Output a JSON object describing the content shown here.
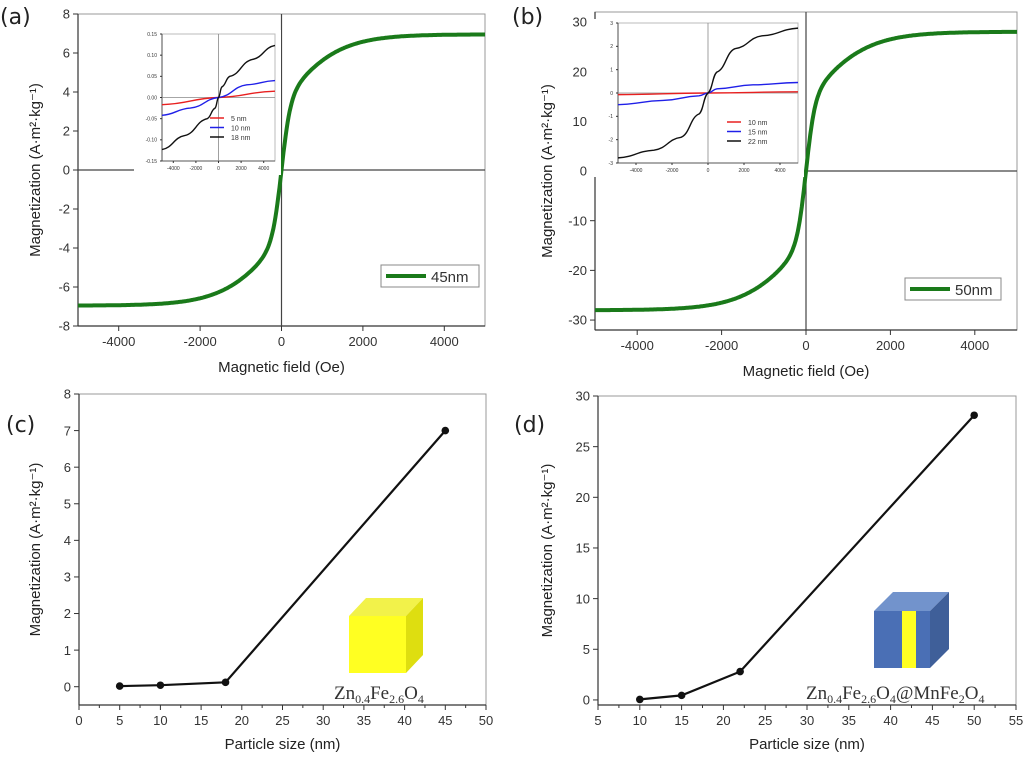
{
  "figure": {
    "panels": [
      "(a)",
      "(b)",
      "(c)",
      "(d)"
    ]
  },
  "colors": {
    "main_curve": "#1a7a1a",
    "inset_red": "#e82020",
    "inset_blue": "#2020e8",
    "inset_black": "#111111",
    "cube_yellow": "#ffff22",
    "shell_blue": "#4a6fb5"
  },
  "chart_data": [
    {
      "panel": "(a)",
      "type": "line",
      "xlabel": "Magnetic field (Oe)",
      "ylabel": "Magnetization (A·m²·kg⁻¹)",
      "xlim": [
        -5000,
        5000
      ],
      "ylim": [
        -8,
        8
      ],
      "xticks": [
        -4000,
        -2000,
        0,
        2000,
        4000
      ],
      "yticks": [
        -8,
        -6,
        -4,
        -2,
        0,
        2,
        4,
        6,
        8
      ],
      "grid": false,
      "legend": {
        "position": "bottom-right",
        "entries": [
          "45nm"
        ]
      },
      "series": [
        {
          "name": "45nm",
          "color": "#1a7a1a",
          "model": "saturating",
          "Ms": 7.25,
          "H0": 220,
          "x": [
            -5000,
            -4000,
            -3000,
            -2000,
            -1000,
            -500,
            -200,
            0,
            200,
            500,
            1000,
            2000,
            3000,
            4000,
            5000
          ],
          "y": [
            -6.95,
            -6.85,
            -6.7,
            -6.5,
            -6.0,
            -5.2,
            -3.5,
            0,
            3.5,
            5.2,
            6.0,
            6.5,
            6.7,
            6.85,
            6.95
          ]
        }
      ],
      "inset": {
        "xlim": [
          -5000,
          5000
        ],
        "ylim": [
          -0.15,
          0.15
        ],
        "xticks": [
          -4000,
          -2000,
          0,
          2000,
          4000
        ],
        "yticks": [
          -0.15,
          -0.1,
          -0.05,
          0.0,
          0.05,
          0.1,
          0.15
        ],
        "ytick_labels": [
          "-0.15",
          "-0.10",
          "-0.05",
          "0.00",
          "0.05",
          "0.10",
          "0.15"
        ],
        "legend": {
          "position": "bottom-right",
          "entries": [
            "5 nm",
            "10 nm",
            "18 nm"
          ]
        },
        "series": [
          {
            "name": "5 nm",
            "color": "#e82020",
            "x": [
              -5000,
              0,
              5000
            ],
            "y": [
              -0.017,
              0,
              0.015
            ]
          },
          {
            "name": "10 nm",
            "color": "#2020e8",
            "x": [
              -5000,
              -2500,
              0,
              2500,
              5000
            ],
            "y": [
              -0.042,
              -0.025,
              0,
              0.03,
              0.04
            ]
          },
          {
            "name": "18 nm",
            "color": "#111111",
            "x": [
              -5000,
              -3000,
              -1000,
              -300,
              0,
              300,
              1000,
              3000,
              5000
            ],
            "y": [
              -0.123,
              -0.09,
              -0.05,
              -0.025,
              0,
              0.025,
              0.05,
              0.09,
              0.123
            ]
          }
        ]
      }
    },
    {
      "panel": "(b)",
      "type": "line",
      "xlabel": "Magnetic field (Oe)",
      "ylabel": "Magnetization (A·m²·kg⁻¹)",
      "xlim": [
        -5000,
        5000
      ],
      "ylim": [
        -32,
        32
      ],
      "xticks": [
        -4000,
        -2000,
        0,
        2000,
        4000
      ],
      "yticks": [
        -30,
        -20,
        -10,
        0,
        10,
        20,
        30
      ],
      "grid": false,
      "legend": {
        "position": "bottom-right",
        "entries": [
          "50nm"
        ]
      },
      "series": [
        {
          "name": "50nm",
          "color": "#1a7a1a",
          "model": "saturating",
          "Ms": 28.8,
          "H0": 210,
          "x": [
            -5000,
            -4000,
            -3000,
            -2000,
            -1000,
            -500,
            -200,
            0,
            200,
            500,
            1000,
            2000,
            3000,
            4000,
            5000
          ],
          "y": [
            -28,
            -27.6,
            -27,
            -26,
            -24,
            -20.5,
            -13,
            0,
            13,
            20.5,
            24,
            26,
            27,
            27.6,
            28
          ]
        }
      ],
      "inset": {
        "xlim": [
          -5000,
          5000
        ],
        "ylim": [
          -3,
          3
        ],
        "xticks": [
          -4000,
          -2000,
          0,
          2000,
          4000
        ],
        "yticks": [
          -3,
          -2,
          -1,
          0,
          1,
          2,
          3
        ],
        "ytick_labels": [
          "-3",
          "-2",
          "-1",
          "0",
          "1",
          "2",
          "3"
        ],
        "legend": {
          "position": "bottom-right",
          "entries": [
            "10 nm",
            "15 nm",
            "22 nm"
          ]
        },
        "series": [
          {
            "name": "10 nm",
            "color": "#e82020",
            "x": [
              -5000,
              0,
              5000
            ],
            "y": [
              -0.07,
              0,
              0.05
            ]
          },
          {
            "name": "15 nm",
            "color": "#2020e8",
            "x": [
              -5000,
              -2500,
              -500,
              0,
              500,
              2500,
              5000
            ],
            "y": [
              -0.5,
              -0.32,
              -0.12,
              0,
              0.18,
              0.35,
              0.45
            ]
          },
          {
            "name": "22 nm",
            "color": "#111111",
            "x": [
              -5000,
              -3000,
              -1500,
              -500,
              0,
              500,
              1500,
              3000,
              5000
            ],
            "y": [
              -2.78,
              -2.45,
              -1.9,
              -0.9,
              0,
              0.9,
              1.9,
              2.45,
              2.78
            ]
          }
        ]
      }
    },
    {
      "panel": "(c)",
      "type": "line",
      "xlabel": "Particle size (nm)",
      "ylabel": "Magnetization (A·m²·kg⁻¹)",
      "xlim": [
        0,
        50
      ],
      "ylim": [
        -0.5,
        8
      ],
      "xticks": [
        0,
        5,
        10,
        15,
        20,
        25,
        30,
        35,
        40,
        45,
        50
      ],
      "yticks": [
        0,
        1,
        2,
        3,
        4,
        5,
        6,
        7,
        8
      ],
      "grid": false,
      "annotation": {
        "formula": [
          [
            "Zn",
            ""
          ],
          [
            "0.4",
            "sub"
          ],
          [
            "Fe",
            ""
          ],
          [
            "2.6",
            "sub"
          ],
          [
            "O",
            ""
          ],
          [
            "4",
            "sub"
          ]
        ],
        "glyph": "yellow-cube"
      },
      "series": [
        {
          "name": "Zn0.4Fe2.6O4",
          "color": "#111111",
          "x": [
            5,
            10,
            18,
            45
          ],
          "y": [
            0.017,
            0.04,
            0.12,
            7.0
          ]
        }
      ]
    },
    {
      "panel": "(d)",
      "type": "line",
      "xlabel": "Particle size (nm)",
      "ylabel": "Magnetization (A·m²·kg⁻¹)",
      "xlim": [
        5,
        55
      ],
      "ylim": [
        -0.5,
        30
      ],
      "xticks": [
        5,
        10,
        15,
        20,
        25,
        30,
        35,
        40,
        45,
        50,
        55
      ],
      "yticks": [
        0,
        5,
        10,
        15,
        20,
        25,
        30
      ],
      "grid": false,
      "annotation": {
        "formula": [
          [
            "Zn",
            ""
          ],
          [
            "0.4",
            "sub"
          ],
          [
            "Fe",
            ""
          ],
          [
            "2.6",
            "sub"
          ],
          [
            "O",
            ""
          ],
          [
            "4",
            "sub"
          ],
          [
            "@MnFe",
            ""
          ],
          [
            "2",
            "sub"
          ],
          [
            "O",
            ""
          ],
          [
            "4",
            "sub"
          ]
        ],
        "glyph": "core-shell-cube"
      },
      "series": [
        {
          "name": "Zn0.4Fe2.6O4@MnFe2O4",
          "color": "#111111",
          "x": [
            10,
            15,
            22,
            50
          ],
          "y": [
            0.05,
            0.45,
            2.8,
            28.1
          ]
        }
      ]
    }
  ]
}
